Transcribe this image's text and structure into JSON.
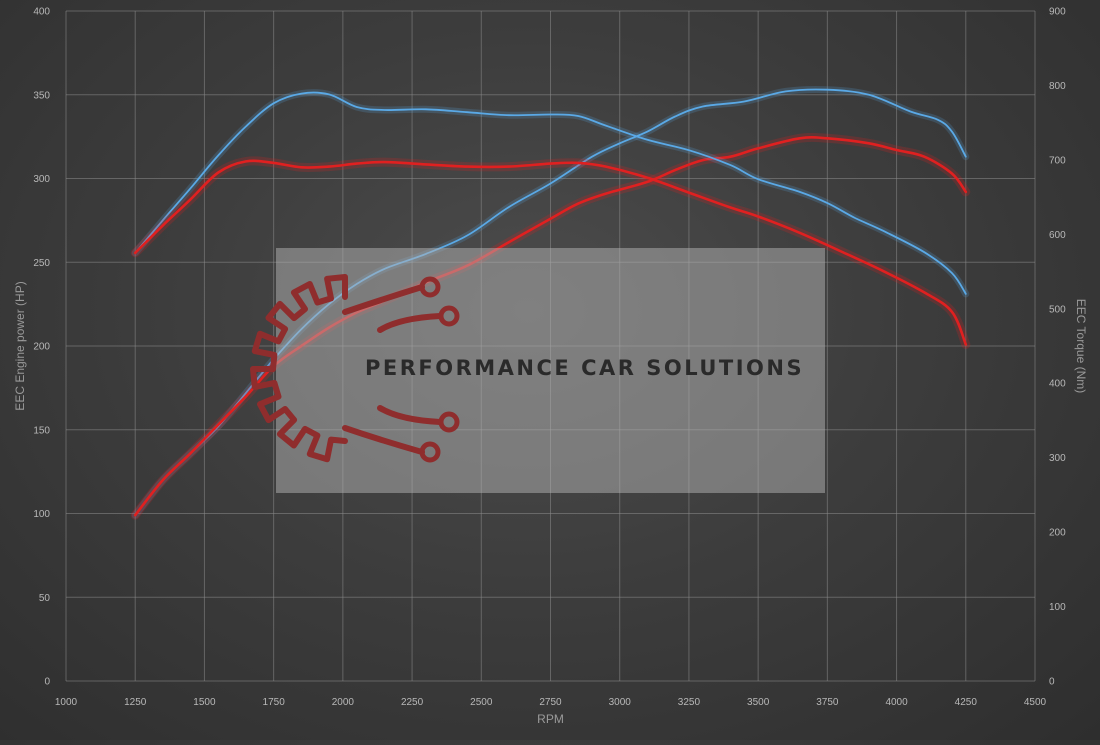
{
  "chart_data": {
    "type": "line",
    "xlabel": "RPM",
    "ylabel_left": "EEC Engine power (HP)",
    "ylabel_right": "EEC Torque (Nm)",
    "xlim": [
      1000,
      4500
    ],
    "ylim_left": [
      0,
      400
    ],
    "ylim_right": [
      0,
      900
    ],
    "x_ticks": [
      "1000",
      "1250",
      "1500",
      "1750",
      "2000",
      "2250",
      "2500",
      "2750",
      "3000",
      "3250",
      "3500",
      "3750",
      "4000",
      "4250",
      "4500"
    ],
    "y_ticks_left": [
      "0",
      "50",
      "100",
      "150",
      "200",
      "250",
      "300",
      "350",
      "400"
    ],
    "y_ticks_right": [
      "0",
      "100",
      "200",
      "300",
      "400",
      "500",
      "600",
      "700",
      "800",
      "900"
    ],
    "grid": true,
    "series": [
      {
        "axis": "left",
        "color": "#5aa9e6",
        "x": [
          1250,
          1350,
          1450,
          1550,
          1650,
          1750,
          1850,
          1950,
          2050,
          2150,
          2300,
          2450,
          2600,
          2750,
          2900,
          3000,
          3100,
          3200,
          3300,
          3450,
          3600,
          3750,
          3900,
          4050,
          4150,
          4200,
          4250
        ],
        "y": [
          99,
          120,
          136,
          152,
          172,
          192,
          210,
          225,
          237,
          246,
          255,
          266,
          283,
          297,
          313,
          321,
          328,
          337,
          343,
          346,
          352,
          353,
          350,
          340,
          335,
          328,
          313
        ]
      },
      {
        "axis": "left",
        "color": "#e02020",
        "x": [
          1250,
          1350,
          1450,
          1550,
          1650,
          1750,
          1850,
          1950,
          2050,
          2150,
          2300,
          2450,
          2600,
          2750,
          2850,
          2950,
          3100,
          3200,
          3300,
          3400,
          3500,
          3650,
          3750,
          3900,
          4000,
          4100,
          4200,
          4250
        ],
        "y": [
          99,
          120,
          136,
          153,
          170,
          188,
          200,
          211,
          220,
          227,
          238,
          248,
          262,
          276,
          285,
          291,
          298,
          305,
          311,
          313,
          318,
          324,
          324,
          321,
          317,
          313,
          303,
          292
        ]
      },
      {
        "axis": "right",
        "color": "#5aa9e6",
        "x": [
          1250,
          1350,
          1450,
          1550,
          1650,
          1750,
          1850,
          1950,
          2050,
          2150,
          2300,
          2450,
          2600,
          2750,
          2850,
          2950,
          3100,
          3250,
          3400,
          3500,
          3650,
          3750,
          3850,
          3950,
          4100,
          4200,
          4250
        ],
        "y": [
          575,
          619,
          662,
          706,
          745,
          776,
          789,
          788,
          771,
          767,
          768,
          764,
          760,
          761,
          759,
          746,
          727,
          713,
          693,
          674,
          657,
          642,
          622,
          605,
          576,
          548,
          520
        ]
      },
      {
        "axis": "right",
        "color": "#e02020",
        "x": [
          1250,
          1350,
          1450,
          1550,
          1650,
          1750,
          1850,
          1950,
          2050,
          2150,
          2300,
          2450,
          2600,
          2750,
          2850,
          2950,
          3100,
          3250,
          3400,
          3500,
          3650,
          3800,
          3950,
          4100,
          4200,
          4250
        ],
        "y": [
          575,
          612,
          647,
          683,
          698,
          696,
          690,
          691,
          695,
          697,
          694,
          691,
          691,
          695,
          696,
          691,
          676,
          656,
          636,
          624,
          602,
          577,
          551,
          522,
          496,
          452
        ]
      }
    ]
  },
  "watermark": {
    "text": "PERFORMANCE CAR SOLUTIONS",
    "icon": "gear-circuit-logo",
    "icon_color": "#8f2d2d"
  }
}
